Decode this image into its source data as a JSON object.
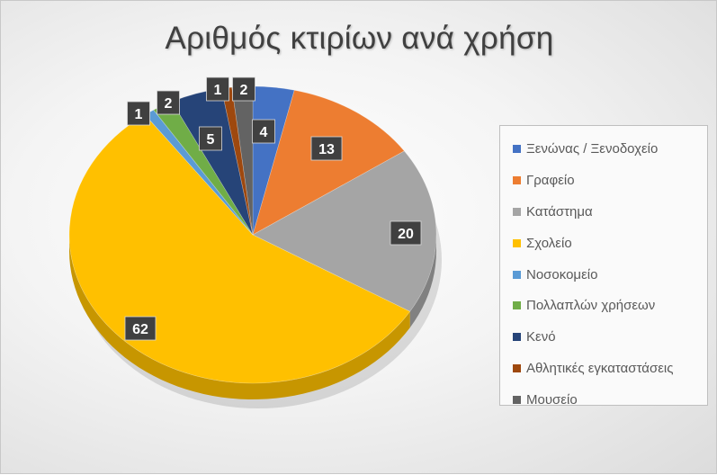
{
  "chart_data": {
    "type": "pie",
    "title": "Αριθμός κτιρίων ανά χρήση",
    "categories": [
      "Ξενώνας / Ξενοδοχείο",
      "Γραφείο",
      "Κατάστημα",
      "Σχολείο",
      "Νοσοκομείο",
      "Πολλαπλών χρήσεων",
      "Κενό",
      "Αθλητικές εγκαταστάσεις",
      "Μουσείο"
    ],
    "values": [
      4,
      13,
      20,
      62,
      1,
      2,
      5,
      1,
      2
    ],
    "colors": [
      "#4472C4",
      "#ED7D31",
      "#A5A5A5",
      "#FFC000",
      "#5B9BD5",
      "#70AD47",
      "#264478",
      "#9E480E",
      "#636363"
    ],
    "legend": "right",
    "data_labels": true,
    "style": "3d"
  }
}
